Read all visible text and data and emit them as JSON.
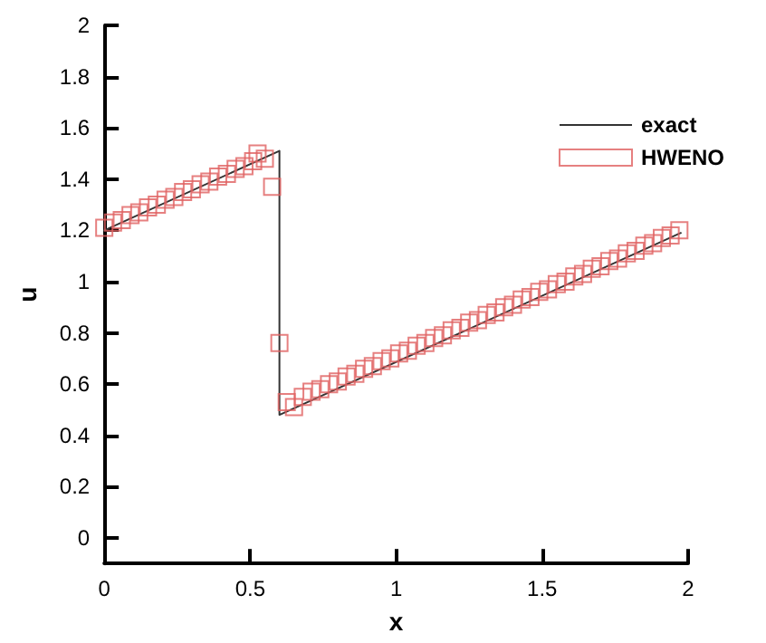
{
  "chart_data": {
    "type": "line",
    "xlabel": "x",
    "ylabel": "u",
    "xlim": [
      0,
      2
    ],
    "ylim": [
      -0.1,
      2
    ],
    "xticks": [
      0,
      0.5,
      1,
      1.5,
      2
    ],
    "yticks": [
      0,
      0.2,
      0.4,
      0.6,
      0.8,
      1,
      1.2,
      1.4,
      1.6,
      1.8,
      2
    ],
    "grid": false,
    "legend": "top right",
    "series": [
      {
        "name": "exact",
        "type": "line",
        "color": "#333333",
        "marker": "none",
        "line_style": "solid",
        "x": [
          0,
          0.6,
          0.6,
          1.975
        ],
        "values": [
          1.2,
          1.51,
          0.48,
          1.19
        ]
      },
      {
        "name": "HWENO",
        "type": "scatter",
        "color": "#e06060",
        "marker": "square",
        "x": [
          0,
          0.03,
          0.06,
          0.09,
          0.12,
          0.15,
          0.18,
          0.21,
          0.24,
          0.27,
          0.3,
          0.33,
          0.36,
          0.39,
          0.42,
          0.45,
          0.48,
          0.51,
          0.525,
          0.55,
          0.575,
          0.6,
          0.625,
          0.65,
          0.68,
          0.71,
          0.74,
          0.77,
          0.8,
          0.83,
          0.86,
          0.89,
          0.92,
          0.95,
          0.98,
          1.01,
          1.04,
          1.07,
          1.1,
          1.13,
          1.16,
          1.19,
          1.22,
          1.25,
          1.28,
          1.31,
          1.34,
          1.37,
          1.4,
          1.43,
          1.46,
          1.49,
          1.52,
          1.55,
          1.58,
          1.61,
          1.64,
          1.67,
          1.7,
          1.73,
          1.76,
          1.79,
          1.82,
          1.85,
          1.88,
          1.91,
          1.94,
          1.97
        ],
        "values": [
          1.21,
          1.23,
          1.24,
          1.26,
          1.27,
          1.29,
          1.3,
          1.32,
          1.33,
          1.35,
          1.36,
          1.38,
          1.39,
          1.41,
          1.42,
          1.44,
          1.45,
          1.47,
          1.5,
          1.48,
          1.37,
          0.76,
          0.53,
          0.51,
          0.55,
          0.57,
          0.58,
          0.6,
          0.61,
          0.63,
          0.64,
          0.66,
          0.67,
          0.69,
          0.7,
          0.72,
          0.73,
          0.75,
          0.76,
          0.78,
          0.79,
          0.81,
          0.82,
          0.84,
          0.85,
          0.87,
          0.88,
          0.9,
          0.91,
          0.93,
          0.94,
          0.96,
          0.97,
          0.99,
          1.0,
          1.02,
          1.03,
          1.05,
          1.06,
          1.08,
          1.09,
          1.11,
          1.12,
          1.14,
          1.15,
          1.17,
          1.18,
          1.2
        ]
      }
    ]
  }
}
